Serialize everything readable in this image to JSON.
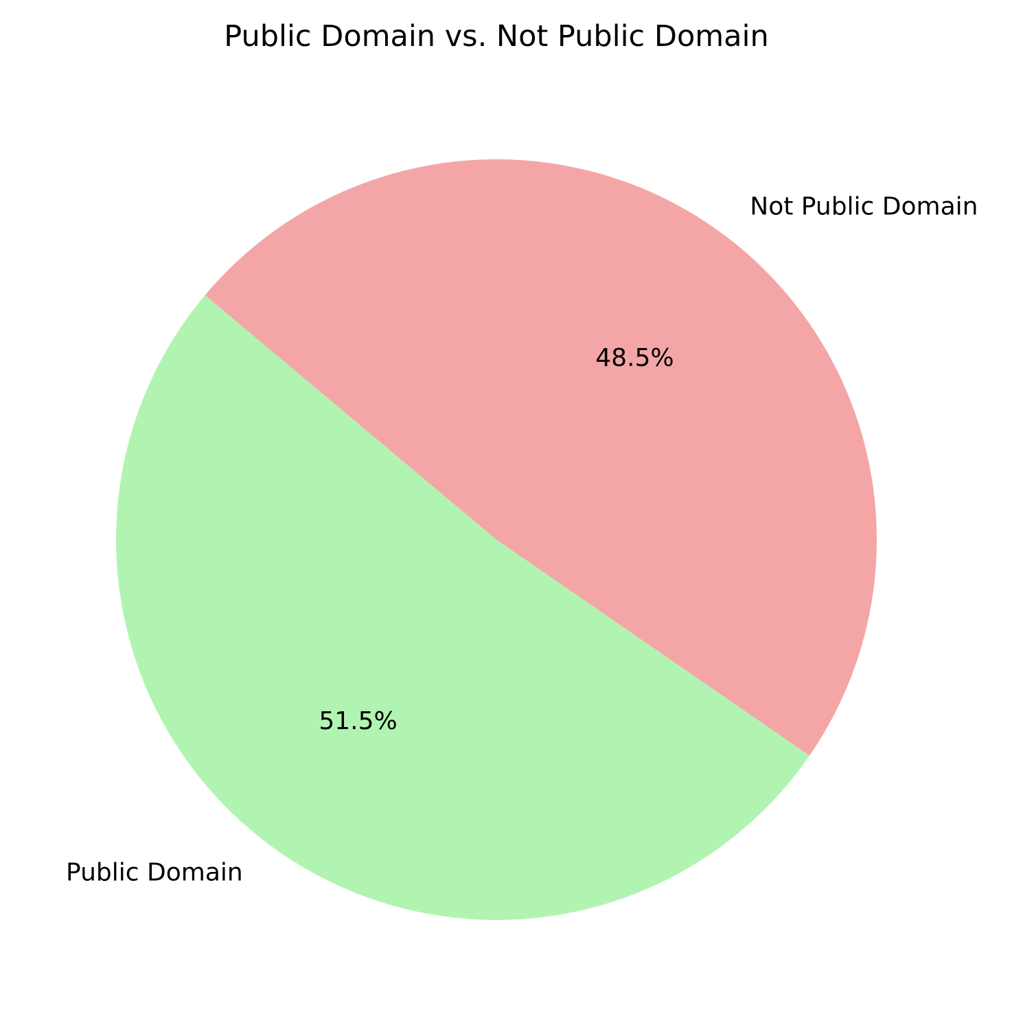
{
  "chart_data": {
    "type": "pie",
    "title": "Public Domain vs. Not Public Domain",
    "labels": [
      "Public Domain",
      "Not Public Domain"
    ],
    "values": [
      51.5,
      48.5
    ],
    "percent_labels": [
      "51.5%",
      "48.5%"
    ],
    "colors": [
      "#b1f4b1",
      "#f4a6a6"
    ],
    "start_angle_deg": 140,
    "direction": "counterclockwise",
    "legend": "none"
  }
}
